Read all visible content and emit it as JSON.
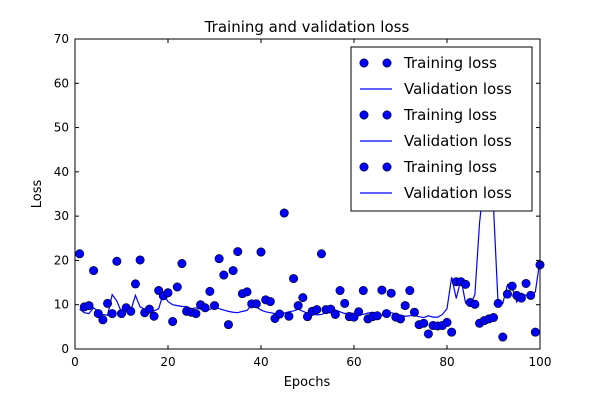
{
  "chart_data": {
    "type": "scatter",
    "title": "Training and validation loss",
    "xlabel": "Epochs",
    "ylabel": "Loss",
    "xlim": [
      0,
      100
    ],
    "ylim": [
      0,
      70
    ],
    "xticks": [
      0,
      20,
      40,
      60,
      80,
      100
    ],
    "yticks": [
      0,
      10,
      20,
      30,
      40,
      50,
      60,
      70
    ],
    "grid": false,
    "legend_position": "top-right",
    "colors": {
      "series": "#0000ff",
      "axes": "#000000",
      "background": "#ffffff"
    },
    "legend": [
      {
        "label": "Training loss",
        "style": "markers"
      },
      {
        "label": "Validation loss",
        "style": "line"
      },
      {
        "label": "Training loss",
        "style": "markers"
      },
      {
        "label": "Validation loss",
        "style": "line"
      },
      {
        "label": "Training loss",
        "style": "markers"
      },
      {
        "label": "Validation loss",
        "style": "line"
      }
    ],
    "series": [
      {
        "name": "Training loss",
        "style": "markers",
        "points": [
          [
            1,
            21.5
          ],
          [
            2,
            9.5
          ],
          [
            3,
            9.8
          ],
          [
            4,
            17.7
          ],
          [
            5,
            8.0
          ],
          [
            6,
            6.6
          ],
          [
            7,
            10.3
          ],
          [
            8,
            8.0
          ],
          [
            9,
            19.8
          ],
          [
            10,
            8.0
          ],
          [
            11,
            9.3
          ],
          [
            12,
            8.5
          ],
          [
            13,
            14.7
          ],
          [
            14,
            20.1
          ],
          [
            15,
            8.2
          ],
          [
            16,
            9.0
          ],
          [
            17,
            7.4
          ],
          [
            18,
            13.2
          ],
          [
            19,
            12.0
          ],
          [
            20,
            12.7
          ],
          [
            21,
            6.2
          ],
          [
            22,
            14.0
          ],
          [
            23,
            19.3
          ],
          [
            24,
            8.5
          ],
          [
            25,
            8.3
          ],
          [
            26,
            8.0
          ],
          [
            27,
            10.0
          ],
          [
            28,
            9.3
          ],
          [
            29,
            13.0
          ],
          [
            30,
            9.8
          ],
          [
            31,
            20.4
          ],
          [
            32,
            16.7
          ],
          [
            33,
            5.5
          ],
          [
            34,
            17.7
          ],
          [
            35,
            22.0
          ],
          [
            36,
            12.5
          ],
          [
            37,
            12.9
          ],
          [
            38,
            10.2
          ],
          [
            39,
            10.2
          ],
          [
            40,
            21.9
          ],
          [
            41,
            11.1
          ],
          [
            42,
            10.7
          ],
          [
            43,
            6.9
          ],
          [
            44,
            7.9
          ],
          [
            45,
            30.7
          ],
          [
            46,
            7.4
          ],
          [
            47,
            15.9
          ],
          [
            48,
            9.8
          ],
          [
            49,
            11.6
          ],
          [
            50,
            7.3
          ],
          [
            51,
            8.5
          ],
          [
            52,
            8.9
          ],
          [
            53,
            21.5
          ],
          [
            54,
            8.9
          ],
          [
            55,
            9.0
          ],
          [
            56,
            7.8
          ],
          [
            57,
            13.2
          ],
          [
            58,
            10.3
          ],
          [
            59,
            7.3
          ],
          [
            60,
            7.2
          ],
          [
            61,
            8.4
          ],
          [
            62,
            13.2
          ],
          [
            63,
            6.8
          ],
          [
            64,
            7.3
          ],
          [
            65,
            7.5
          ],
          [
            66,
            13.3
          ],
          [
            67,
            8.0
          ],
          [
            68,
            12.6
          ],
          [
            69,
            7.2
          ],
          [
            70,
            6.8
          ],
          [
            71,
            9.8
          ],
          [
            72,
            13.2
          ],
          [
            73,
            8.3
          ],
          [
            74,
            5.5
          ],
          [
            75,
            5.8
          ],
          [
            76,
            3.4
          ],
          [
            77,
            5.3
          ],
          [
            78,
            5.2
          ],
          [
            79,
            5.3
          ],
          [
            80,
            6.0
          ],
          [
            81,
            3.8
          ],
          [
            82,
            15.2
          ],
          [
            83,
            15.2
          ],
          [
            84,
            14.6
          ],
          [
            85,
            10.5
          ],
          [
            86,
            10.1
          ],
          [
            87,
            5.8
          ],
          [
            88,
            6.4
          ],
          [
            89,
            6.8
          ],
          [
            90,
            7.1
          ],
          [
            91,
            10.3
          ],
          [
            92,
            2.7
          ],
          [
            93,
            12.4
          ],
          [
            94,
            14.2
          ],
          [
            95,
            12.1
          ],
          [
            96,
            11.5
          ],
          [
            97,
            14.8
          ],
          [
            98,
            12.1
          ],
          [
            99,
            3.8
          ],
          [
            100,
            19.0
          ]
        ]
      },
      {
        "name": "Validation loss",
        "style": "line",
        "points": [
          [
            1,
            9.0
          ],
          [
            2,
            8.2
          ],
          [
            3,
            8.0
          ],
          [
            4,
            9.3
          ],
          [
            5,
            8.5
          ],
          [
            6,
            7.8
          ],
          [
            7,
            7.6
          ],
          [
            8,
            12.3
          ],
          [
            9,
            10.8
          ],
          [
            10,
            8.3
          ],
          [
            11,
            8.5
          ],
          [
            12,
            8.7
          ],
          [
            13,
            12.1
          ],
          [
            14,
            9.5
          ],
          [
            15,
            9.0
          ],
          [
            16,
            8.3
          ],
          [
            17,
            8.6
          ],
          [
            18,
            9.1
          ],
          [
            19,
            12.6
          ],
          [
            20,
            10.7
          ],
          [
            21,
            10.0
          ],
          [
            22,
            9.8
          ],
          [
            23,
            9.6
          ],
          [
            24,
            9.6
          ],
          [
            25,
            9.1
          ],
          [
            26,
            9.3
          ],
          [
            27,
            9.0
          ],
          [
            28,
            8.8
          ],
          [
            29,
            8.9
          ],
          [
            30,
            9.6
          ],
          [
            31,
            9.1
          ],
          [
            32,
            8.8
          ],
          [
            33,
            8.5
          ],
          [
            34,
            8.3
          ],
          [
            35,
            8.2
          ],
          [
            36,
            8.5
          ],
          [
            37,
            8.7
          ],
          [
            38,
            10.0
          ],
          [
            39,
            9.5
          ],
          [
            40,
            8.8
          ],
          [
            41,
            8.4
          ],
          [
            42,
            8.2
          ],
          [
            43,
            8.0
          ],
          [
            44,
            7.9
          ],
          [
            45,
            8.1
          ],
          [
            46,
            8.4
          ],
          [
            47,
            8.6
          ],
          [
            48,
            9.0
          ],
          [
            49,
            8.5
          ],
          [
            50,
            8.1
          ],
          [
            51,
            7.9
          ],
          [
            52,
            7.7
          ],
          [
            53,
            7.8
          ],
          [
            54,
            8.2
          ],
          [
            55,
            8.6
          ],
          [
            56,
            8.8
          ],
          [
            57,
            8.4
          ],
          [
            58,
            8.0
          ],
          [
            59,
            8.2
          ],
          [
            60,
            8.0
          ],
          [
            61,
            7.7
          ],
          [
            62,
            7.8
          ],
          [
            63,
            8.1
          ],
          [
            64,
            8.3
          ],
          [
            65,
            8.0
          ],
          [
            66,
            7.6
          ],
          [
            67,
            7.9
          ],
          [
            68,
            8.2
          ],
          [
            69,
            7.9
          ],
          [
            70,
            7.6
          ],
          [
            71,
            7.4
          ],
          [
            72,
            7.5
          ],
          [
            73,
            7.6
          ],
          [
            74,
            7.3
          ],
          [
            75,
            7.1
          ],
          [
            76,
            7.5
          ],
          [
            77,
            7.2
          ],
          [
            78,
            7.2
          ],
          [
            79,
            7.8
          ],
          [
            80,
            9.1
          ],
          [
            81,
            16.2
          ],
          [
            82,
            11.4
          ],
          [
            83,
            15.8
          ],
          [
            84,
            10.4
          ],
          [
            85,
            9.8
          ],
          [
            86,
            12.3
          ],
          [
            87,
            28.5
          ],
          [
            88,
            38.0
          ],
          [
            89,
            37.5
          ],
          [
            90,
            32.0
          ],
          [
            91,
            10.0
          ],
          [
            92,
            10.3
          ],
          [
            93,
            14.5
          ],
          [
            94,
            14.0
          ],
          [
            95,
            10.6
          ],
          [
            96,
            12.6
          ],
          [
            97,
            12.1
          ],
          [
            98,
            11.8
          ],
          [
            99,
            12.9
          ],
          [
            100,
            20.1
          ]
        ]
      }
    ]
  }
}
